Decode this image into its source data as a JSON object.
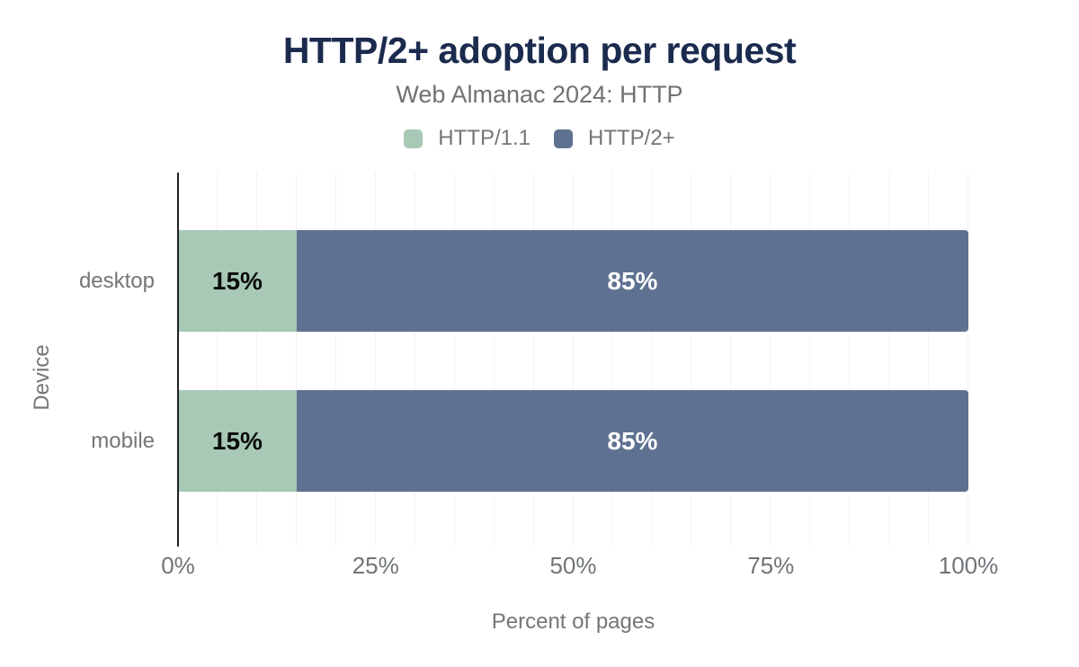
{
  "header": {
    "title": "HTTP/2+ adoption per request",
    "subtitle": "Web Almanac 2024: HTTP"
  },
  "chart_data": {
    "type": "bar",
    "orientation": "horizontal",
    "stacked": true,
    "title": "HTTP/2+ adoption per request",
    "subtitle": "Web Almanac 2024: HTTP",
    "xlabel": "Percent of pages",
    "ylabel": "Device",
    "categories": [
      "desktop",
      "mobile"
    ],
    "series": [
      {
        "name": "HTTP/1.1",
        "color": "#a8c9b6",
        "label_color": "#0b0b0b",
        "values": [
          15,
          15
        ],
        "labels": [
          "15%",
          "15%"
        ]
      },
      {
        "name": "HTTP/2+",
        "color": "#5e7190",
        "label_color": "#ffffff",
        "values": [
          85,
          85
        ],
        "labels": [
          "85%",
          "85%"
        ]
      }
    ],
    "xlim": [
      0,
      100
    ],
    "x_ticks": [
      {
        "value": 0,
        "label": "0%"
      },
      {
        "value": 25,
        "label": "25%"
      },
      {
        "value": 50,
        "label": "50%"
      },
      {
        "value": 75,
        "label": "75%"
      },
      {
        "value": 100,
        "label": "100%"
      }
    ],
    "grid": {
      "show": true,
      "minor_step_pct": 5,
      "color": "#f3f3f3"
    },
    "legend_position": "top"
  },
  "colors": {
    "title_text": "#1b2b4e",
    "muted_text": "#757575",
    "axis_line": "#212121",
    "background": "#ffffff"
  }
}
